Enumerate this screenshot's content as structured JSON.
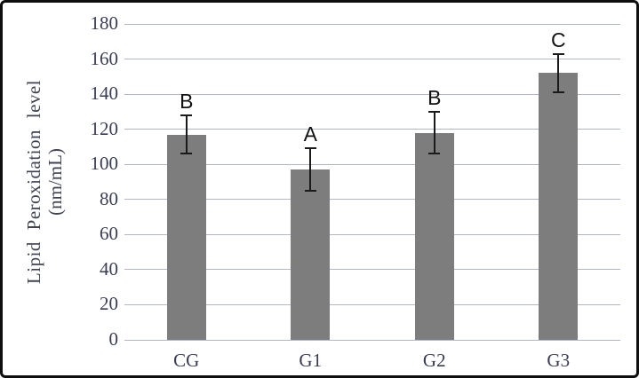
{
  "chart_data": {
    "type": "bar",
    "title": "",
    "ylabel_line1": "Lipid Peroxidation level",
    "ylabel_line2": "(nm/mL)",
    "xlabel": "",
    "categories": [
      "CG",
      "G1",
      "G2",
      "G3"
    ],
    "values": [
      117,
      97,
      118,
      152
    ],
    "error_bars": [
      11,
      12,
      12,
      11
    ],
    "sig_letters": [
      "B",
      "A",
      "B",
      "C"
    ],
    "ylim": [
      0,
      180
    ],
    "yticks": [
      0,
      20,
      40,
      60,
      80,
      100,
      120,
      140,
      160,
      180
    ],
    "grid": true,
    "legend": false,
    "bar_color": "#7d7d7d",
    "grid_color": "#b3b6c9",
    "tick_text_color": "#383c55",
    "axis_title_color": "#3f4254",
    "error_color": "#1a1a1a",
    "letter_color": "#111111",
    "frame_color": "#0e0e0e"
  }
}
